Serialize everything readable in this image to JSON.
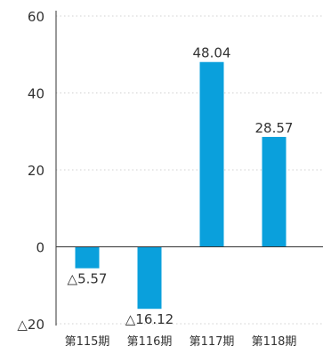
{
  "chart_data": {
    "type": "bar",
    "categories": [
      "第115期",
      "第116期",
      "第117期",
      "第118期"
    ],
    "values": [
      -5.57,
      -16.12,
      48.04,
      28.57
    ],
    "value_labels": [
      "△5.57",
      "△16.12",
      "48.04",
      "28.57"
    ],
    "ylim": [
      -20,
      60
    ],
    "yticks": [
      60,
      40,
      20,
      0,
      -20
    ],
    "ytick_labels": [
      "60",
      "40",
      "20",
      "0",
      "△20"
    ],
    "grid": true,
    "legend": "none",
    "colors": {
      "bar": "#0AA0DC",
      "axis": "#333333",
      "grid": "#D0D0D0",
      "text": "#333333"
    }
  }
}
